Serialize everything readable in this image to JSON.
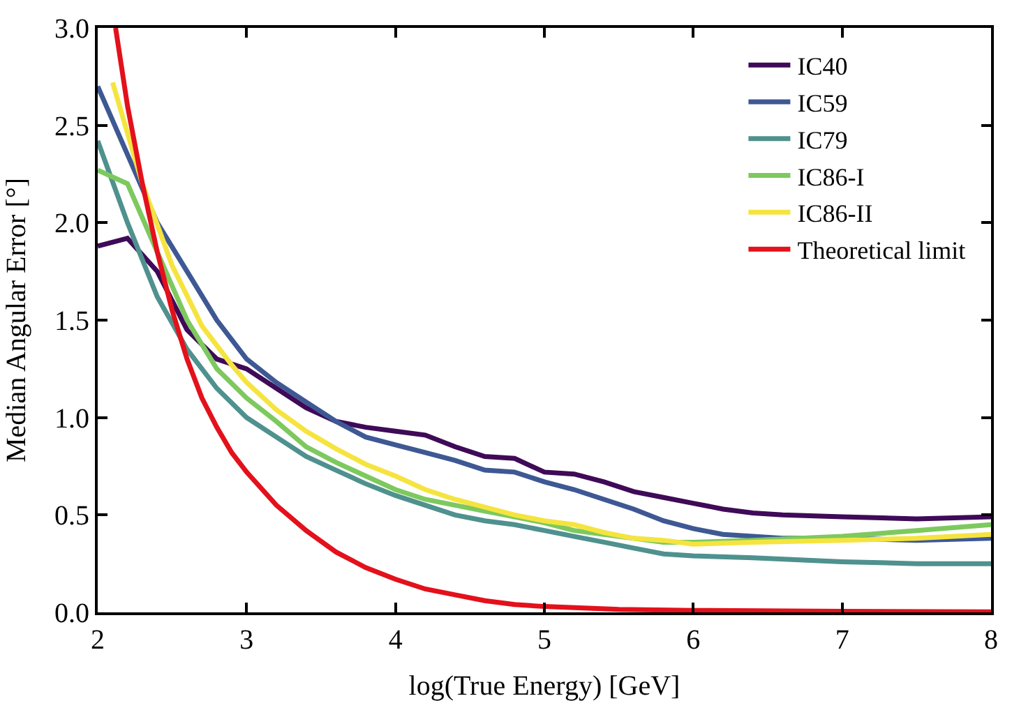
{
  "chart_data": {
    "type": "line",
    "xlabel": "log(True Energy) [GeV]",
    "ylabel": "Median Angular Error [°]",
    "xlim": [
      2,
      8
    ],
    "xticks": [
      2,
      3,
      4,
      5,
      6,
      7,
      8
    ],
    "ylim": [
      0,
      3.0
    ],
    "yticks": [
      {
        "value": 0,
        "label": "0.0"
      },
      {
        "value": 0.5,
        "label": "0.5"
      },
      {
        "value": 1,
        "label": "1.0"
      },
      {
        "value": 1.5,
        "label": "1.5"
      },
      {
        "value": 2,
        "label": "2.0"
      },
      {
        "value": 2.5,
        "label": "2.5"
      },
      {
        "value": 3,
        "label": "3.0"
      }
    ],
    "legend": "top right",
    "marker": "none",
    "line_style": "solid",
    "series": [
      {
        "name": "IC40",
        "color": "#3f0a57",
        "x": [
          2,
          2.2,
          2.4,
          2.6,
          2.8,
          3.0,
          3.2,
          3.4,
          3.6,
          3.8,
          4.0,
          4.2,
          4.4,
          4.6,
          4.8,
          5.0,
          5.2,
          5.4,
          5.6,
          5.8,
          6.0,
          6.2,
          6.4,
          6.6,
          7.0,
          7.5,
          8
        ],
        "values": [
          1.88,
          1.92,
          1.75,
          1.45,
          1.3,
          1.25,
          1.15,
          1.05,
          0.98,
          0.95,
          0.93,
          0.91,
          0.85,
          0.8,
          0.79,
          0.72,
          0.71,
          0.67,
          0.62,
          0.59,
          0.56,
          0.53,
          0.51,
          0.5,
          0.49,
          0.48,
          0.49
        ]
      },
      {
        "name": "IC59",
        "color": "#3e5894",
        "x": [
          2,
          2.2,
          2.4,
          2.6,
          2.8,
          3.0,
          3.2,
          3.4,
          3.6,
          3.8,
          4.0,
          4.2,
          4.4,
          4.6,
          4.8,
          5.0,
          5.2,
          5.4,
          5.6,
          5.8,
          6.0,
          6.2,
          6.4,
          6.6,
          7.0,
          7.5,
          8
        ],
        "values": [
          2.7,
          2.35,
          2.0,
          1.75,
          1.5,
          1.3,
          1.18,
          1.08,
          0.98,
          0.9,
          0.86,
          0.82,
          0.78,
          0.73,
          0.72,
          0.67,
          0.63,
          0.58,
          0.53,
          0.47,
          0.43,
          0.4,
          0.39,
          0.38,
          0.38,
          0.37,
          0.38
        ]
      },
      {
        "name": "IC79",
        "color": "#4f918e",
        "x": [
          2,
          2.2,
          2.4,
          2.6,
          2.8,
          3.0,
          3.2,
          3.4,
          3.6,
          3.8,
          4.0,
          4.2,
          4.4,
          4.6,
          4.8,
          5.0,
          5.2,
          5.4,
          5.6,
          5.8,
          6.0,
          6.4,
          7.0,
          7.5,
          8
        ],
        "values": [
          2.42,
          2.0,
          1.62,
          1.35,
          1.15,
          1.0,
          0.9,
          0.8,
          0.73,
          0.66,
          0.6,
          0.55,
          0.5,
          0.47,
          0.45,
          0.42,
          0.39,
          0.36,
          0.33,
          0.3,
          0.29,
          0.28,
          0.26,
          0.25,
          0.25
        ]
      },
      {
        "name": "IC86-I",
        "color": "#7dc95e",
        "x": [
          2,
          2.2,
          2.4,
          2.6,
          2.8,
          3.0,
          3.2,
          3.4,
          3.6,
          3.8,
          4.0,
          4.2,
          4.4,
          4.6,
          4.8,
          5.0,
          5.2,
          5.4,
          5.6,
          5.8,
          6.0,
          6.4,
          7.0,
          7.5,
          8
        ],
        "values": [
          2.27,
          2.2,
          1.85,
          1.5,
          1.25,
          1.1,
          0.98,
          0.85,
          0.77,
          0.7,
          0.63,
          0.58,
          0.55,
          0.52,
          0.49,
          0.46,
          0.42,
          0.4,
          0.38,
          0.36,
          0.36,
          0.37,
          0.39,
          0.42,
          0.45
        ]
      },
      {
        "name": "IC86-II",
        "color": "#f5e43f",
        "x": [
          2.1,
          2.3,
          2.5,
          2.7,
          2.9,
          3.0,
          3.2,
          3.4,
          3.6,
          3.8,
          4.0,
          4.2,
          4.4,
          4.6,
          4.8,
          5.0,
          5.2,
          5.4,
          5.6,
          5.8,
          6.0,
          6.4,
          7.0,
          7.5,
          8
        ],
        "values": [
          2.72,
          2.2,
          1.78,
          1.47,
          1.27,
          1.18,
          1.04,
          0.93,
          0.84,
          0.76,
          0.7,
          0.63,
          0.58,
          0.54,
          0.5,
          0.47,
          0.45,
          0.41,
          0.38,
          0.37,
          0.35,
          0.36,
          0.37,
          0.38,
          0.4
        ]
      },
      {
        "name": "Theoretical limit",
        "color": "#e3111b",
        "x": [
          2.12,
          2.2,
          2.3,
          2.4,
          2.5,
          2.6,
          2.7,
          2.8,
          2.9,
          3.0,
          3.2,
          3.4,
          3.6,
          3.8,
          4.0,
          4.2,
          4.4,
          4.6,
          4.8,
          5.0,
          5.5,
          6,
          7,
          8
        ],
        "values": [
          3.0,
          2.6,
          2.2,
          1.85,
          1.55,
          1.3,
          1.1,
          0.95,
          0.82,
          0.72,
          0.55,
          0.42,
          0.31,
          0.23,
          0.17,
          0.12,
          0.09,
          0.06,
          0.04,
          0.03,
          0.015,
          0.01,
          0.005,
          0.003
        ]
      }
    ]
  }
}
